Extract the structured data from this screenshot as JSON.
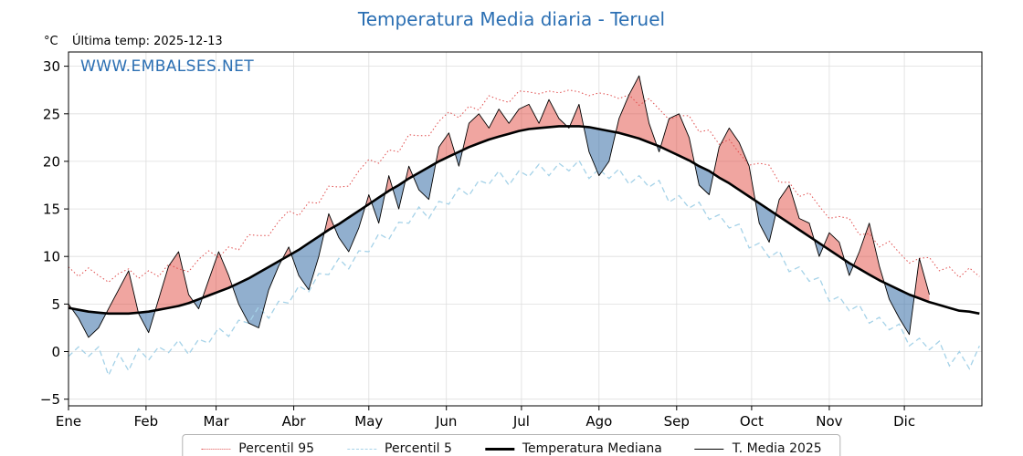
{
  "colors": {
    "accent_blue": "#2b6fb3",
    "p95_red": "#e04b4b",
    "p5_lightblue": "#a5d2e8",
    "median_black": "#000000",
    "fill_above": "rgba(222,55,45,0.45)",
    "fill_below": "rgba(55,110,165,0.55)",
    "grid_gray": "#dedede"
  },
  "chart_data": {
    "type": "line",
    "title": "Temperatura Media diaria - Teruel",
    "unit_label": "°C",
    "last_temp_label": "Última temp: 2025-12-13",
    "watermark": "WWW.EMBALSES.NET",
    "legend_position": "bottom",
    "grid": true,
    "days_total": 365,
    "x_day_step": 4,
    "months": [
      "Ene",
      "Feb",
      "Mar",
      "Abr",
      "May",
      "Jun",
      "Jul",
      "Ago",
      "Sep",
      "Oct",
      "Nov",
      "Dic"
    ],
    "month_start_days": [
      0,
      31,
      59,
      90,
      120,
      151,
      181,
      212,
      243,
      273,
      304,
      334
    ],
    "yticks": [
      -5,
      0,
      5,
      10,
      15,
      20,
      25,
      30
    ],
    "ylim": [
      -5.7,
      31.5
    ],
    "fill_above_color": "rgba(222,55,45,0.45)",
    "fill_below_color": "rgba(55,110,165,0.55)",
    "series": [
      {
        "name": "Percentil 95",
        "color": "#e04b4b",
        "style": "dotted",
        "values": [
          8.9,
          7.9,
          8.8,
          8.0,
          7.3,
          8.2,
          8.7,
          7.7,
          8.5,
          7.9,
          9.2,
          8.7,
          8.4,
          9.7,
          10.6,
          9.9,
          11.0,
          10.7,
          12.3,
          12.2,
          12.2,
          13.7,
          14.8,
          14.3,
          15.7,
          15.6,
          17.4,
          17.3,
          17.4,
          19.0,
          20.2,
          19.8,
          21.2,
          21.0,
          22.8,
          22.7,
          22.7,
          24.2,
          25.2,
          24.6,
          25.8,
          25.4,
          26.9,
          26.5,
          26.2,
          27.4,
          27.3,
          27.1,
          27.4,
          27.2,
          27.5,
          27.3,
          26.9,
          27.2,
          27.0,
          26.6,
          27.0,
          25.9,
          26.6,
          25.5,
          24.4,
          24.8,
          24.8,
          23.1,
          23.3,
          21.8,
          22.3,
          20.9,
          19.6,
          19.8,
          19.6,
          17.8,
          17.8,
          16.3,
          16.7,
          15.3,
          14.0,
          14.2,
          14.0,
          12.3,
          12.4,
          11.0,
          11.6,
          10.4,
          9.3,
          9.8,
          9.9,
          8.5,
          8.9,
          7.8,
          8.8,
          7.9
        ]
      },
      {
        "name": "Percentil 5",
        "color": "#a5d2e8",
        "style": "dashed",
        "values": [
          -0.5,
          0.5,
          -0.5,
          0.5,
          -2.5,
          -0.2,
          -2.0,
          0.3,
          -0.9,
          0.5,
          -0.1,
          1.2,
          -0.3,
          1.3,
          0.9,
          2.5,
          1.6,
          3.3,
          3.0,
          4.7,
          3.5,
          5.3,
          5.1,
          6.9,
          6.3,
          8.2,
          8.1,
          9.8,
          8.7,
          10.6,
          10.5,
          12.4,
          11.8,
          13.6,
          13.5,
          15.2,
          14.0,
          15.8,
          15.5,
          17.2,
          16.4,
          18.0,
          17.6,
          19.0,
          17.5,
          19.0,
          18.4,
          19.7,
          18.5,
          19.8,
          19.0,
          20.1,
          18.2,
          19.2,
          18.2,
          19.2,
          17.6,
          18.5,
          17.3,
          18.0,
          15.7,
          16.4,
          15.1,
          15.7,
          13.9,
          14.4,
          13.0,
          13.4,
          10.9,
          11.4,
          9.9,
          10.6,
          8.4,
          8.9,
          7.4,
          7.8,
          5.3,
          5.8,
          4.3,
          4.9,
          3.0,
          3.6,
          2.3,
          2.9,
          0.6,
          1.4,
          0.2,
          1.1,
          -1.5,
          0.0,
          -1.8,
          0.6
        ]
      },
      {
        "name": "Temperatura Mediana",
        "color": "#000000",
        "style": "solid-thick",
        "values": [
          4.6,
          4.4,
          4.2,
          4.1,
          4.0,
          4.0,
          4.0,
          4.1,
          4.2,
          4.4,
          4.6,
          4.8,
          5.1,
          5.5,
          5.9,
          6.3,
          6.7,
          7.2,
          7.7,
          8.3,
          8.9,
          9.5,
          10.1,
          10.7,
          11.4,
          12.1,
          12.8,
          13.4,
          14.1,
          14.8,
          15.5,
          16.2,
          16.9,
          17.5,
          18.2,
          18.8,
          19.4,
          20.0,
          20.5,
          21.0,
          21.5,
          21.9,
          22.3,
          22.6,
          22.9,
          23.2,
          23.4,
          23.5,
          23.6,
          23.7,
          23.7,
          23.7,
          23.6,
          23.4,
          23.2,
          23.0,
          22.7,
          22.4,
          22.0,
          21.6,
          21.1,
          20.6,
          20.1,
          19.5,
          19.0,
          18.3,
          17.7,
          17.0,
          16.3,
          15.6,
          14.9,
          14.2,
          13.5,
          12.8,
          12.1,
          11.4,
          10.7,
          10.0,
          9.3,
          8.7,
          8.1,
          7.5,
          7.0,
          6.5,
          6.0,
          5.6,
          5.2,
          4.9,
          4.6,
          4.3,
          4.2,
          4.0
        ]
      },
      {
        "name": "T. Media 2025",
        "color": "#000000",
        "style": "solid-thin",
        "values": [
          5.0,
          3.5,
          1.5,
          2.5,
          4.5,
          6.5,
          8.5,
          4.0,
          2.0,
          5.5,
          9.0,
          10.5,
          6.0,
          4.5,
          7.5,
          10.5,
          8.0,
          5.0,
          3.0,
          2.5,
          6.5,
          9.0,
          11.0,
          8.0,
          6.5,
          10.0,
          14.5,
          12.0,
          10.5,
          13.0,
          16.5,
          13.5,
          18.5,
          15.0,
          19.5,
          17.0,
          16.0,
          21.5,
          23.0,
          19.5,
          24.0,
          25.0,
          23.5,
          25.5,
          24.0,
          25.5,
          26.0,
          24.0,
          26.5,
          24.5,
          23.5,
          26.0,
          21.0,
          18.5,
          20.0,
          24.5,
          27.0,
          29.0,
          24.0,
          21.0,
          24.5,
          25.0,
          22.5,
          17.5,
          16.5,
          21.5,
          23.5,
          22.0,
          19.5,
          13.5,
          11.5,
          16.0,
          17.5,
          14.0,
          13.5,
          10.0,
          12.5,
          11.5,
          8.0,
          10.5,
          13.5,
          9.0,
          5.5,
          3.5,
          1.8,
          9.8,
          6.0
        ]
      }
    ]
  }
}
